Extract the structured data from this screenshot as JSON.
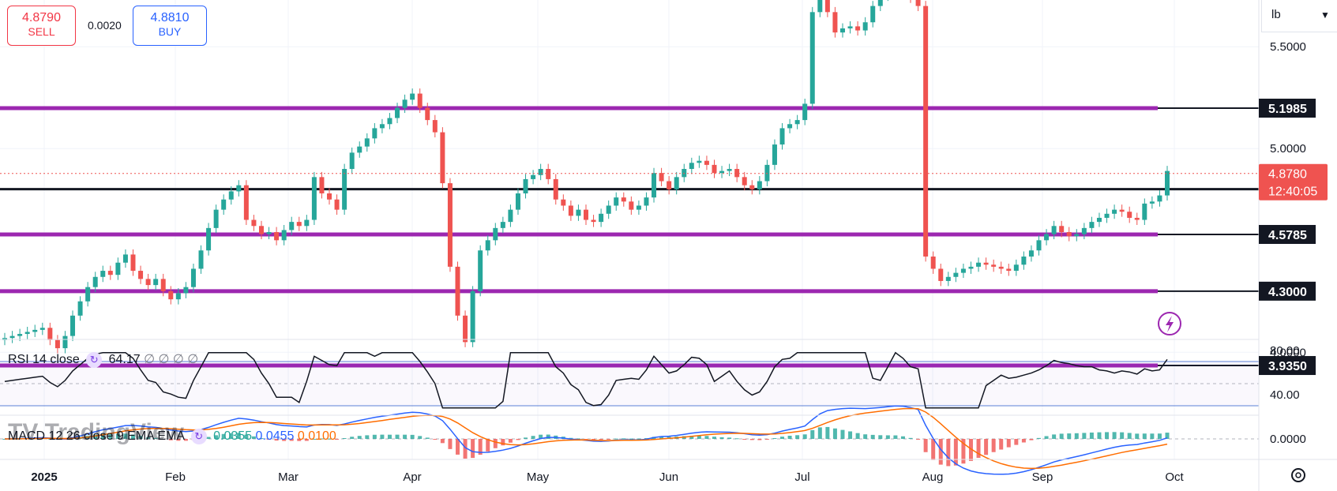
{
  "trade": {
    "sell_price": "4.8790",
    "sell_label": "SELL",
    "spread": "0.0020",
    "buy_price": "4.8810",
    "buy_label": "BUY"
  },
  "unit_selector": {
    "value": "lb"
  },
  "colors": {
    "up": "#26a69a",
    "down": "#ef5350",
    "purple": "#9c27b0",
    "rsi_band": "#5b7fd6",
    "macd": "#2962ff",
    "signal": "#ff6d00"
  },
  "chart_data": {
    "type": "candlestick",
    "y_axis": {
      "range": [
        3.93,
        5.86
      ],
      "ticks": [
        "5.5000",
        "5.0000",
        "4.0000"
      ]
    },
    "x_axis": {
      "ticks": [
        "2025",
        "Feb",
        "Mar",
        "Apr",
        "May",
        "Jun",
        "Jul",
        "Aug",
        "Sep",
        "Oct"
      ]
    },
    "horizontal_levels": [
      {
        "label": "5.1985",
        "value": 5.1985,
        "color": "#9c27b0"
      },
      {
        "label": "4.8010",
        "value": 4.801,
        "color": "#131722"
      },
      {
        "label": "4.5785",
        "value": 4.5785,
        "color": "#9c27b0"
      },
      {
        "label": "4.3000",
        "value": 4.3,
        "color": "#9c27b0"
      },
      {
        "label": "3.9350",
        "value": 3.935,
        "color": "#9c27b0"
      }
    ],
    "current_price": {
      "value": 4.878,
      "label": "4.8780",
      "countdown": "12:40:05"
    },
    "close_series": [
      4.07,
      4.08,
      4.09,
      4.1,
      4.11,
      4.12,
      4.06,
      4.02,
      4.08,
      4.18,
      4.25,
      4.32,
      4.37,
      4.4,
      4.38,
      4.44,
      4.48,
      4.4,
      4.36,
      4.33,
      4.36,
      4.3,
      4.26,
      4.29,
      4.32,
      4.41,
      4.5,
      4.61,
      4.7,
      4.75,
      4.79,
      4.82,
      4.65,
      4.62,
      4.58,
      4.59,
      4.55,
      4.6,
      4.64,
      4.62,
      4.65,
      4.86,
      4.78,
      4.75,
      4.7,
      4.9,
      4.98,
      5.01,
      5.05,
      5.1,
      5.12,
      5.15,
      5.2,
      5.24,
      5.27,
      5.2,
      5.14,
      5.08,
      4.83,
      4.42,
      4.18,
      4.05,
      4.3,
      4.5,
      4.55,
      4.61,
      4.64,
      4.7,
      4.78,
      4.85,
      4.87,
      4.9,
      4.85,
      4.75,
      4.72,
      4.67,
      4.7,
      4.65,
      4.64,
      4.68,
      4.72,
      4.76,
      4.74,
      4.7,
      4.72,
      4.76,
      4.88,
      4.84,
      4.8,
      4.86,
      4.9,
      4.93,
      4.94,
      4.92,
      4.88,
      4.89,
      4.9,
      4.86,
      4.82,
      4.8,
      4.84,
      4.92,
      5.02,
      5.1,
      5.12,
      5.14,
      5.22,
      5.67,
      5.74,
      5.67,
      5.57,
      5.59,
      5.6,
      5.58,
      5.62,
      5.7,
      5.75,
      5.81,
      5.86,
      5.81,
      5.74,
      5.7,
      4.47,
      4.41,
      4.35,
      4.37,
      4.39,
      4.41,
      4.42,
      4.44,
      4.43,
      4.42,
      4.41,
      4.4,
      4.43,
      4.47,
      4.5,
      4.55,
      4.58,
      4.62,
      4.59,
      4.57,
      4.58,
      4.61,
      4.64,
      4.66,
      4.68,
      4.7,
      4.69,
      4.66,
      4.65,
      4.73,
      4.74,
      4.77,
      4.89
    ],
    "rsi": {
      "label": "RSI 14 close",
      "value": "64.17",
      "na": "∅ ∅ ∅ ∅",
      "bands": [
        70,
        30
      ],
      "ticks": [
        "80.00",
        "40.00"
      ]
    },
    "macd": {
      "label": "MACD 12 26 close 9 EMA EMA",
      "histogram": "0.0355",
      "macd": "0.0455",
      "signal": "0.0100",
      "ticks": [
        "0.0000"
      ]
    }
  }
}
